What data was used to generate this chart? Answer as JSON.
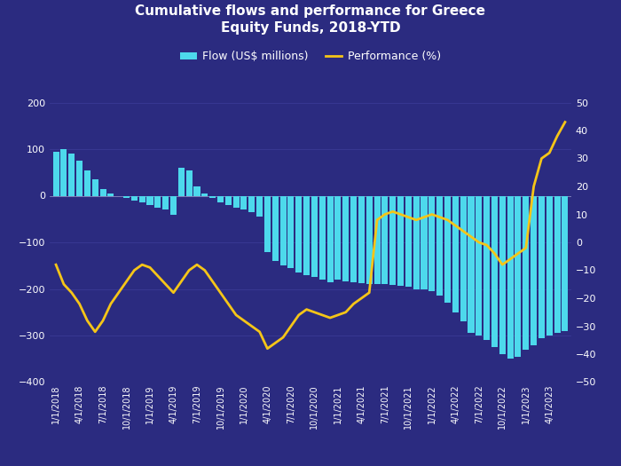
{
  "title": "Cumulative flows and performance for Greece\nEquity Funds, 2018-YTD",
  "background_color": "#2b2b80",
  "bar_color": "#4dd9ec",
  "line_color": "#f5c518",
  "text_color": "#ffffff",
  "grid_color": "#4a4aaa",
  "left_ylim": [
    -400,
    200
  ],
  "right_ylim": [
    -50,
    50
  ],
  "left_yticks": [
    -400,
    -300,
    -200,
    -100,
    0,
    100,
    200
  ],
  "right_yticks": [
    -50,
    -40,
    -30,
    -20,
    -10,
    0,
    10,
    20,
    30,
    40,
    50
  ],
  "x_labels": [
    "1/1/2018",
    "4/1/2018",
    "7/1/2018",
    "10/1/2018",
    "1/1/2019",
    "4/1/2019",
    "7/1/2019",
    "10/1/2019",
    "1/1/2020",
    "4/1/2020",
    "7/1/2020",
    "10/1/2020",
    "1/1/2021",
    "4/1/2021",
    "7/1/2021",
    "10/1/2021",
    "1/1/2022",
    "4/1/2022",
    "7/1/2022",
    "10/1/2022",
    "1/1/2023",
    "4/1/2023"
  ],
  "flow_monthly": [
    95,
    100,
    90,
    75,
    55,
    35,
    15,
    5,
    0,
    -5,
    -10,
    -15,
    -20,
    -25,
    -30,
    -40,
    60,
    55,
    20,
    5,
    -5,
    -15,
    -20,
    -25,
    -30,
    -35,
    -45,
    -120,
    -140,
    -150,
    -155,
    -165,
    -170,
    -175,
    -180,
    -185,
    -180,
    -183,
    -185,
    -188,
    -190,
    -190,
    -190,
    -192,
    -193,
    -195,
    -200,
    -200,
    -205,
    -215,
    -230,
    -250,
    -270,
    -295,
    -300,
    -310,
    -325,
    -340,
    -350,
    -345,
    -330,
    -320,
    -305,
    -300,
    -295,
    -290
  ],
  "perf_monthly": [
    -8,
    -15,
    -18,
    -22,
    -28,
    -32,
    -28,
    -22,
    -18,
    -14,
    -10,
    -8,
    -9,
    -12,
    -15,
    -18,
    -14,
    -10,
    -8,
    -10,
    -14,
    -18,
    -22,
    -26,
    -28,
    -30,
    -32,
    -38,
    -36,
    -34,
    -30,
    -26,
    -24,
    -25,
    -26,
    -27,
    -26,
    -25,
    -22,
    -20,
    -18,
    8,
    10,
    11,
    10,
    9,
    8,
    9,
    10,
    9,
    8,
    6,
    4,
    2,
    0,
    -1,
    -4,
    -8,
    -6,
    -4,
    -2,
    20,
    30,
    32,
    38,
    43
  ]
}
